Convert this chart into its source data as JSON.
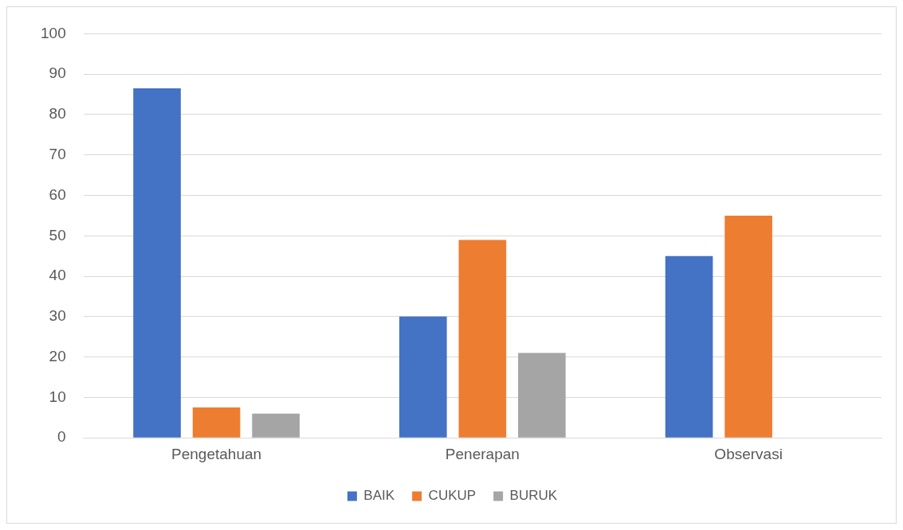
{
  "chart_data": {
    "type": "bar",
    "categories": [
      "Pengetahuan",
      "Penerapan",
      "Observasi"
    ],
    "series": [
      {
        "name": "BAIK",
        "color": "#4472c4",
        "values": [
          86.5,
          30,
          45
        ]
      },
      {
        "name": "CUKUP",
        "color": "#ed7d31",
        "values": [
          7.5,
          49,
          55
        ]
      },
      {
        "name": "BURUK",
        "color": "#a5a5a5",
        "values": [
          6,
          21,
          0
        ]
      }
    ],
    "ylim": [
      0,
      100
    ],
    "yticks": [
      0,
      10,
      20,
      30,
      40,
      50,
      60,
      70,
      80,
      90,
      100
    ],
    "grid": "y",
    "legend": "bottom"
  }
}
